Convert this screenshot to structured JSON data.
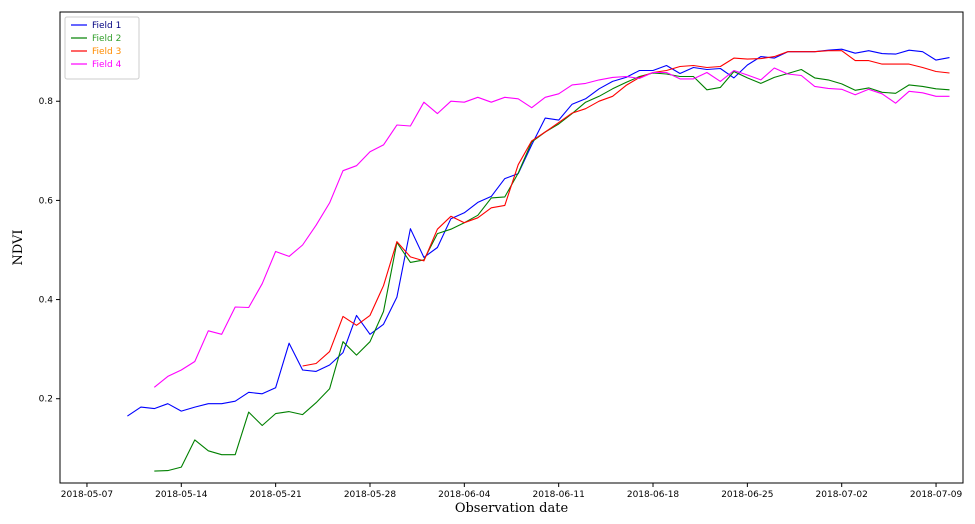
{
  "chart_data": {
    "type": "line",
    "title": "",
    "xlabel": "Observation date",
    "ylabel": "NDVI",
    "x_type": "date",
    "xlim": [
      "2018-05-05",
      "2018-07-11"
    ],
    "ylim": [
      0.03,
      0.98
    ],
    "x_ticks": [
      "2018-05-07",
      "2018-05-14",
      "2018-05-21",
      "2018-05-28",
      "2018-06-04",
      "2018-06-11",
      "2018-06-18",
      "2018-06-25",
      "2018-07-02",
      "2018-07-09"
    ],
    "y_ticks": [
      0.2,
      0.4,
      0.6,
      0.8
    ],
    "grid": false,
    "legend_position": "top-left",
    "series": [
      {
        "name": "Field 1",
        "color": "#0000ff",
        "points": [
          [
            "2018-05-10",
            0.165
          ],
          [
            "2018-05-11",
            0.183
          ],
          [
            "2018-05-12",
            0.18
          ],
          [
            "2018-05-13",
            0.19
          ],
          [
            "2018-05-14",
            0.175
          ],
          [
            "2018-05-15",
            0.183
          ],
          [
            "2018-05-16",
            0.19
          ],
          [
            "2018-05-17",
            0.19
          ],
          [
            "2018-05-18",
            0.195
          ],
          [
            "2018-05-19",
            0.213
          ],
          [
            "2018-05-20",
            0.21
          ],
          [
            "2018-05-21",
            0.222
          ],
          [
            "2018-05-22",
            0.312
          ],
          [
            "2018-05-23",
            0.258
          ],
          [
            "2018-05-24",
            0.255
          ],
          [
            "2018-05-25",
            0.268
          ],
          [
            "2018-05-26",
            0.293
          ],
          [
            "2018-05-27",
            0.368
          ],
          [
            "2018-05-28",
            0.33
          ],
          [
            "2018-05-29",
            0.35
          ],
          [
            "2018-05-30",
            0.405
          ],
          [
            "2018-05-31",
            0.543
          ],
          [
            "2018-06-01",
            0.485
          ],
          [
            "2018-06-02",
            0.505
          ],
          [
            "2018-06-03",
            0.563
          ],
          [
            "2018-06-04",
            0.575
          ],
          [
            "2018-06-05",
            0.596
          ],
          [
            "2018-06-06",
            0.608
          ],
          [
            "2018-06-07",
            0.644
          ],
          [
            "2018-06-08",
            0.654
          ],
          [
            "2018-06-09",
            0.712
          ],
          [
            "2018-06-10",
            0.766
          ],
          [
            "2018-06-11",
            0.762
          ],
          [
            "2018-06-12",
            0.794
          ],
          [
            "2018-06-13",
            0.805
          ],
          [
            "2018-06-14",
            0.825
          ],
          [
            "2018-06-15",
            0.84
          ],
          [
            "2018-06-16",
            0.848
          ],
          [
            "2018-06-17",
            0.862
          ],
          [
            "2018-06-18",
            0.862
          ],
          [
            "2018-06-19",
            0.872
          ],
          [
            "2018-06-20",
            0.856
          ],
          [
            "2018-06-21",
            0.868
          ],
          [
            "2018-06-22",
            0.864
          ],
          [
            "2018-06-23",
            0.866
          ],
          [
            "2018-06-24",
            0.847
          ],
          [
            "2018-06-25",
            0.873
          ],
          [
            "2018-06-26",
            0.89
          ],
          [
            "2018-06-27",
            0.887
          ],
          [
            "2018-06-28",
            0.9
          ],
          [
            "2018-06-29",
            0.9
          ],
          [
            "2018-06-30",
            0.9
          ],
          [
            "2018-07-01",
            0.903
          ],
          [
            "2018-07-02",
            0.905
          ],
          [
            "2018-07-03",
            0.897
          ],
          [
            "2018-07-04",
            0.902
          ],
          [
            "2018-07-05",
            0.896
          ],
          [
            "2018-07-06",
            0.895
          ],
          [
            "2018-07-07",
            0.903
          ],
          [
            "2018-07-08",
            0.9
          ],
          [
            "2018-07-09",
            0.883
          ],
          [
            "2018-07-10",
            0.888
          ]
        ]
      },
      {
        "name": "Field 2",
        "color": "#008000",
        "points": [
          [
            "2018-05-12",
            0.054
          ],
          [
            "2018-05-13",
            0.055
          ],
          [
            "2018-05-14",
            0.062
          ],
          [
            "2018-05-15",
            0.117
          ],
          [
            "2018-05-16",
            0.095
          ],
          [
            "2018-05-17",
            0.087
          ],
          [
            "2018-05-18",
            0.087
          ],
          [
            "2018-05-19",
            0.173
          ],
          [
            "2018-05-20",
            0.146
          ],
          [
            "2018-05-21",
            0.17
          ],
          [
            "2018-05-22",
            0.174
          ],
          [
            "2018-05-23",
            0.168
          ],
          [
            "2018-05-24",
            0.192
          ],
          [
            "2018-05-25",
            0.22
          ],
          [
            "2018-05-26",
            0.315
          ],
          [
            "2018-05-27",
            0.288
          ],
          [
            "2018-05-28",
            0.315
          ],
          [
            "2018-05-29",
            0.376
          ],
          [
            "2018-05-30",
            0.515
          ],
          [
            "2018-05-31",
            0.475
          ],
          [
            "2018-06-01",
            0.48
          ],
          [
            "2018-06-02",
            0.533
          ],
          [
            "2018-06-03",
            0.542
          ],
          [
            "2018-06-04",
            0.555
          ],
          [
            "2018-06-05",
            0.57
          ],
          [
            "2018-06-06",
            0.605
          ],
          [
            "2018-06-07",
            0.607
          ],
          [
            "2018-06-08",
            0.655
          ],
          [
            "2018-06-09",
            0.718
          ],
          [
            "2018-06-10",
            0.738
          ],
          [
            "2018-06-11",
            0.754
          ],
          [
            "2018-06-12",
            0.775
          ],
          [
            "2018-06-13",
            0.798
          ],
          [
            "2018-06-14",
            0.81
          ],
          [
            "2018-06-15",
            0.825
          ],
          [
            "2018-06-16",
            0.838
          ],
          [
            "2018-06-17",
            0.85
          ],
          [
            "2018-06-18",
            0.857
          ],
          [
            "2018-06-19",
            0.855
          ],
          [
            "2018-06-20",
            0.85
          ],
          [
            "2018-06-21",
            0.85
          ],
          [
            "2018-06-22",
            0.823
          ],
          [
            "2018-06-23",
            0.828
          ],
          [
            "2018-06-24",
            0.86
          ],
          [
            "2018-06-25",
            0.847
          ],
          [
            "2018-06-26",
            0.836
          ],
          [
            "2018-06-27",
            0.848
          ],
          [
            "2018-06-28",
            0.856
          ],
          [
            "2018-06-29",
            0.864
          ],
          [
            "2018-06-30",
            0.847
          ],
          [
            "2018-07-01",
            0.843
          ],
          [
            "2018-07-02",
            0.835
          ],
          [
            "2018-07-03",
            0.822
          ],
          [
            "2018-07-04",
            0.827
          ],
          [
            "2018-07-05",
            0.818
          ],
          [
            "2018-07-06",
            0.816
          ],
          [
            "2018-07-07",
            0.833
          ],
          [
            "2018-07-08",
            0.83
          ],
          [
            "2018-07-09",
            0.825
          ],
          [
            "2018-07-10",
            0.823
          ]
        ]
      },
      {
        "name": "Field 3",
        "color": "#ff0000",
        "points": [
          [
            "2018-05-23",
            0.266
          ],
          [
            "2018-05-24",
            0.271
          ],
          [
            "2018-05-25",
            0.295
          ],
          [
            "2018-05-26",
            0.366
          ],
          [
            "2018-05-27",
            0.348
          ],
          [
            "2018-05-28",
            0.368
          ],
          [
            "2018-05-29",
            0.428
          ],
          [
            "2018-05-30",
            0.517
          ],
          [
            "2018-05-31",
            0.486
          ],
          [
            "2018-06-01",
            0.478
          ],
          [
            "2018-06-02",
            0.542
          ],
          [
            "2018-06-03",
            0.568
          ],
          [
            "2018-06-04",
            0.555
          ],
          [
            "2018-06-05",
            0.565
          ],
          [
            "2018-06-06",
            0.585
          ],
          [
            "2018-06-07",
            0.59
          ],
          [
            "2018-06-08",
            0.672
          ],
          [
            "2018-06-09",
            0.72
          ],
          [
            "2018-06-10",
            0.738
          ],
          [
            "2018-06-11",
            0.757
          ],
          [
            "2018-06-12",
            0.776
          ],
          [
            "2018-06-13",
            0.785
          ],
          [
            "2018-06-14",
            0.8
          ],
          [
            "2018-06-15",
            0.81
          ],
          [
            "2018-06-16",
            0.832
          ],
          [
            "2018-06-17",
            0.848
          ],
          [
            "2018-06-18",
            0.858
          ],
          [
            "2018-06-19",
            0.862
          ],
          [
            "2018-06-20",
            0.87
          ],
          [
            "2018-06-21",
            0.872
          ],
          [
            "2018-06-22",
            0.868
          ],
          [
            "2018-06-23",
            0.87
          ],
          [
            "2018-06-24",
            0.887
          ],
          [
            "2018-06-25",
            0.885
          ],
          [
            "2018-06-26",
            0.886
          ],
          [
            "2018-06-27",
            0.89
          ],
          [
            "2018-06-28",
            0.9
          ],
          [
            "2018-06-29",
            0.9
          ],
          [
            "2018-06-30",
            0.9
          ],
          [
            "2018-07-01",
            0.902
          ],
          [
            "2018-07-02",
            0.902
          ],
          [
            "2018-07-03",
            0.882
          ],
          [
            "2018-07-04",
            0.882
          ],
          [
            "2018-07-05",
            0.875
          ],
          [
            "2018-07-06",
            0.875
          ],
          [
            "2018-07-07",
            0.875
          ],
          [
            "2018-07-08",
            0.868
          ],
          [
            "2018-07-09",
            0.86
          ],
          [
            "2018-07-10",
            0.857
          ]
        ]
      },
      {
        "name": "Field 4",
        "color": "#ff00ff",
        "points": [
          [
            "2018-05-12",
            0.223
          ],
          [
            "2018-05-13",
            0.245
          ],
          [
            "2018-05-14",
            0.258
          ],
          [
            "2018-05-15",
            0.275
          ],
          [
            "2018-05-16",
            0.337
          ],
          [
            "2018-05-17",
            0.33
          ],
          [
            "2018-05-18",
            0.385
          ],
          [
            "2018-05-19",
            0.384
          ],
          [
            "2018-05-20",
            0.432
          ],
          [
            "2018-05-21",
            0.497
          ],
          [
            "2018-05-22",
            0.487
          ],
          [
            "2018-05-23",
            0.51
          ],
          [
            "2018-05-24",
            0.55
          ],
          [
            "2018-05-25",
            0.595
          ],
          [
            "2018-05-26",
            0.66
          ],
          [
            "2018-05-27",
            0.67
          ],
          [
            "2018-05-28",
            0.698
          ],
          [
            "2018-05-29",
            0.712
          ],
          [
            "2018-05-30",
            0.752
          ],
          [
            "2018-05-31",
            0.75
          ],
          [
            "2018-06-01",
            0.798
          ],
          [
            "2018-06-02",
            0.775
          ],
          [
            "2018-06-03",
            0.8
          ],
          [
            "2018-06-04",
            0.798
          ],
          [
            "2018-06-05",
            0.808
          ],
          [
            "2018-06-06",
            0.798
          ],
          [
            "2018-06-07",
            0.808
          ],
          [
            "2018-06-08",
            0.805
          ],
          [
            "2018-06-09",
            0.787
          ],
          [
            "2018-06-10",
            0.808
          ],
          [
            "2018-06-11",
            0.815
          ],
          [
            "2018-06-12",
            0.833
          ],
          [
            "2018-06-13",
            0.836
          ],
          [
            "2018-06-14",
            0.843
          ],
          [
            "2018-06-15",
            0.848
          ],
          [
            "2018-06-16",
            0.85
          ],
          [
            "2018-06-17",
            0.846
          ],
          [
            "2018-06-18",
            0.858
          ],
          [
            "2018-06-19",
            0.858
          ],
          [
            "2018-06-20",
            0.845
          ],
          [
            "2018-06-21",
            0.845
          ],
          [
            "2018-06-22",
            0.858
          ],
          [
            "2018-06-23",
            0.84
          ],
          [
            "2018-06-24",
            0.862
          ],
          [
            "2018-06-25",
            0.853
          ],
          [
            "2018-06-26",
            0.843
          ],
          [
            "2018-06-27",
            0.867
          ],
          [
            "2018-06-28",
            0.855
          ],
          [
            "2018-06-29",
            0.852
          ],
          [
            "2018-06-30",
            0.83
          ],
          [
            "2018-07-01",
            0.826
          ],
          [
            "2018-07-02",
            0.824
          ],
          [
            "2018-07-03",
            0.813
          ],
          [
            "2018-07-04",
            0.824
          ],
          [
            "2018-07-05",
            0.815
          ],
          [
            "2018-07-06",
            0.796
          ],
          [
            "2018-07-07",
            0.82
          ],
          [
            "2018-07-08",
            0.817
          ],
          [
            "2018-07-09",
            0.81
          ],
          [
            "2018-07-10",
            0.81
          ]
        ]
      }
    ]
  }
}
